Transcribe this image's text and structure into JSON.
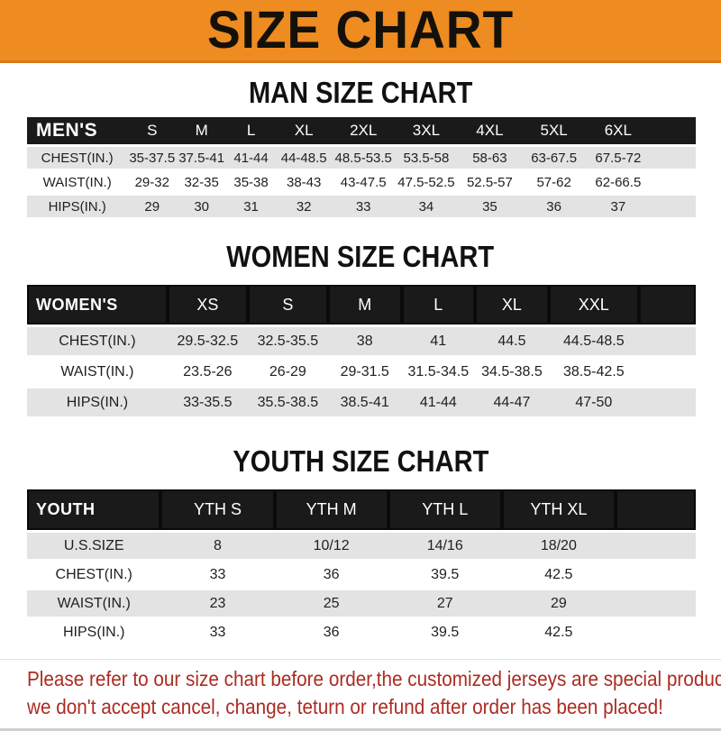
{
  "banner": {
    "title": "SIZE CHART",
    "bg_color": "#ee8b21",
    "text_color": "#14100a"
  },
  "colors": {
    "header_bar": "#1a1a1a",
    "row_gray": "#e3e3e3",
    "row_white": "#ffffff",
    "footer_red": "#ac2b22"
  },
  "sections": [
    {
      "id": "men",
      "heading": "MAN SIZE CHART",
      "header_label": "MEN'S",
      "columns": [
        "S",
        "M",
        "L",
        "XL",
        "2XL",
        "3XL",
        "4XL",
        "5XL",
        "6XL"
      ],
      "rows": [
        {
          "label": "CHEST(IN.)",
          "values": [
            "35-37.5",
            "37.5-41",
            "41-44",
            "44-48.5",
            "48.5-53.5",
            "53.5-58",
            "58-63",
            "63-67.5",
            "67.5-72"
          ]
        },
        {
          "label": "WAIST(IN.)",
          "values": [
            "29-32",
            "32-35",
            "35-38",
            "38-43",
            "43-47.5",
            "47.5-52.5",
            "52.5-57",
            "57-62",
            "62-66.5"
          ]
        },
        {
          "label": "HIPS(IN.)",
          "values": [
            "29",
            "30",
            "31",
            "32",
            "33",
            "34",
            "35",
            "36",
            "37"
          ]
        }
      ]
    },
    {
      "id": "women",
      "heading": "WOMEN SIZE CHART",
      "header_label": "WOMEN'S",
      "columns": [
        "XS",
        "S",
        "M",
        "L",
        "XL",
        "XXL"
      ],
      "rows": [
        {
          "label": "CHEST(IN.)",
          "values": [
            "29.5-32.5",
            "32.5-35.5",
            "38",
            "41",
            "44.5",
            "44.5-48.5"
          ]
        },
        {
          "label": "WAIST(IN.)",
          "values": [
            "23.5-26",
            "26-29",
            "29-31.5",
            "31.5-34.5",
            "34.5-38.5",
            "38.5-42.5"
          ]
        },
        {
          "label": "HIPS(IN.)",
          "values": [
            "33-35.5",
            "35.5-38.5",
            "38.5-41",
            "41-44",
            "44-47",
            "47-50"
          ]
        }
      ]
    },
    {
      "id": "youth",
      "heading": "YOUTH SIZE CHART",
      "header_label": "YOUTH",
      "columns": [
        "YTH S",
        "YTH M",
        "YTH L",
        "YTH XL"
      ],
      "rows": [
        {
          "label": "U.S.SIZE",
          "values": [
            "8",
            "10/12",
            "14/16",
            "18/20"
          ]
        },
        {
          "label": "CHEST(IN.)",
          "values": [
            "33",
            "36",
            "39.5",
            "42.5"
          ]
        },
        {
          "label": "WAIST(IN.)",
          "values": [
            "23",
            "25",
            "27",
            "29"
          ]
        },
        {
          "label": "HIPS(IN.)",
          "values": [
            "33",
            "36",
            "39.5",
            "42.5"
          ]
        }
      ]
    }
  ],
  "footer": {
    "line1": "Please refer to our size chart before order,the customized jerseys are special products,",
    "line2": "we don't accept cancel, change, teturn or refund after order has been placed!"
  }
}
